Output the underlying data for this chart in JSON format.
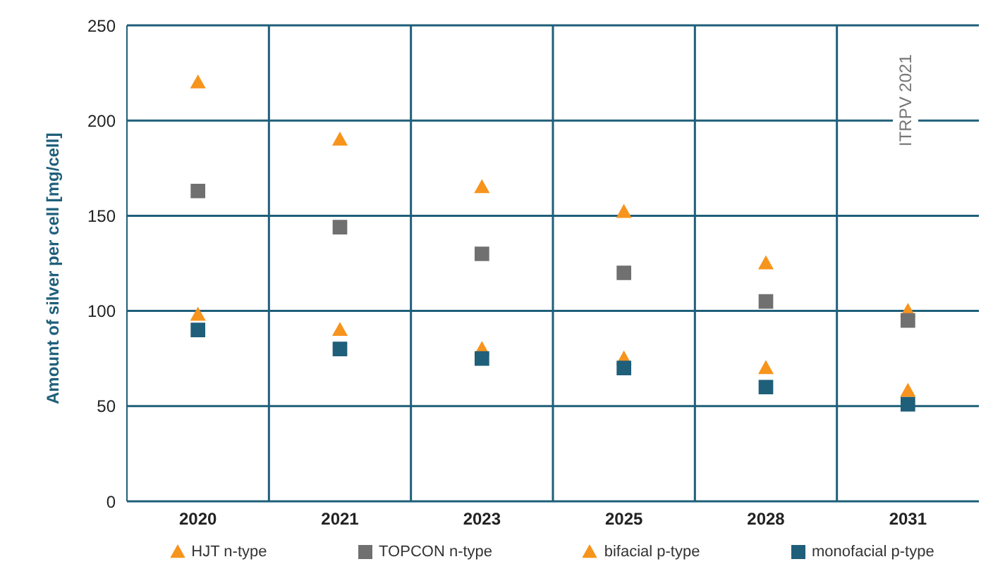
{
  "chart_data": {
    "type": "scatter",
    "ylabel": "Amount of silver per cell [mg/cell]",
    "categories": [
      "2020",
      "2021",
      "2023",
      "2025",
      "2028",
      "2031"
    ],
    "series": [
      {
        "name": "HJT n-type",
        "color": "#f7941d",
        "marker": "triangle",
        "values": [
          220,
          190,
          165,
          152,
          125,
          100
        ]
      },
      {
        "name": "TOPCON n-type",
        "color": "#707070",
        "marker": "square",
        "values": [
          163,
          144,
          130,
          120,
          105,
          95
        ]
      },
      {
        "name": "bifacial p-type",
        "color": "#f7941d",
        "marker": "triangle",
        "values": [
          98,
          90,
          80,
          75,
          70,
          58
        ]
      },
      {
        "name": "monofacial p-type",
        "color": "#1f5f7a",
        "marker": "square",
        "values": [
          90,
          80,
          75,
          70,
          60,
          51
        ]
      }
    ],
    "ylim": [
      0,
      250
    ],
    "yticks": [
      0,
      50,
      100,
      150,
      200,
      250
    ],
    "grid": true,
    "legend": "bottom",
    "annotations": [
      "ITRPV 2021"
    ]
  }
}
